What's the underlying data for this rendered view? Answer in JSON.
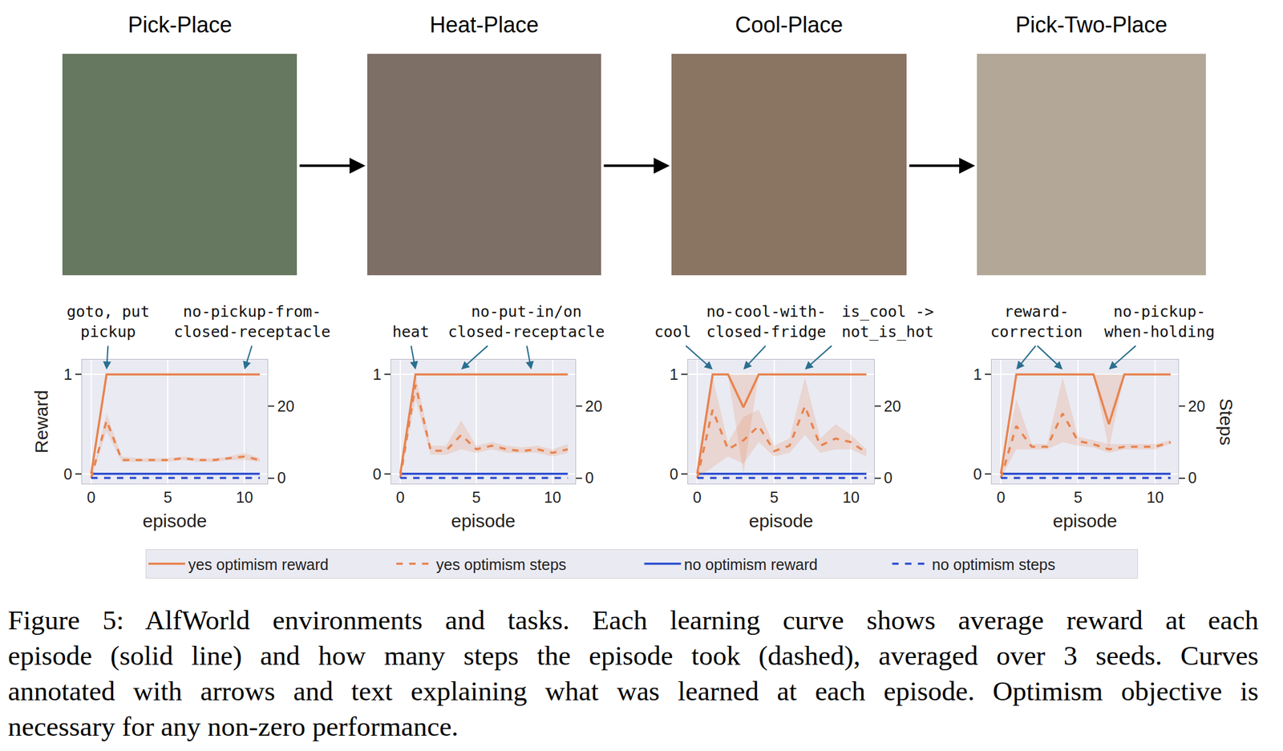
{
  "chart_data": [
    {
      "type": "line",
      "title": "Pick-Place",
      "x_label": "episode",
      "y_label": "Reward",
      "x": [
        0,
        1,
        2,
        3,
        4,
        5,
        6,
        7,
        8,
        9,
        10,
        11
      ],
      "xlim": [
        -0.6,
        11.5
      ],
      "xticks": [
        0,
        5,
        10
      ],
      "ylim": [
        -0.1,
        1.15
      ],
      "yticks": [
        0,
        1
      ],
      "y2lim": [
        -1.6,
        33
      ],
      "y2ticks": [
        0,
        20
      ],
      "grid": true,
      "legend": "bottom",
      "annotations": [
        {
          "text": "goto, put\npickup",
          "x": [
            1
          ]
        },
        {
          "text": "no-pickup-from-\nclosed-receptacle",
          "x": [
            10
          ]
        }
      ],
      "series": [
        {
          "name": "yes optimism reward",
          "color": "#e8834e",
          "line_style": "solid",
          "values": [
            0,
            1,
            1,
            1,
            1,
            1,
            1,
            1,
            1,
            1,
            1,
            1
          ]
        },
        {
          "name": "yes optimism steps",
          "color": "#e8834e",
          "line_style": "dashed",
          "axis": "y2",
          "values": [
            0,
            16,
            5,
            5,
            5,
            5,
            5.5,
            5,
            5,
            5.5,
            6,
            5
          ],
          "lower": [
            0,
            13,
            4.5,
            4.5,
            4.5,
            4.5,
            5,
            4.5,
            4.5,
            5,
            5,
            4.5
          ],
          "upper": [
            0,
            18,
            6,
            5.5,
            5.5,
            5.5,
            6,
            5.5,
            5.5,
            6,
            7,
            5.5
          ]
        },
        {
          "name": "no optimism reward",
          "color": "#2e4fd1",
          "line_style": "solid",
          "values": [
            0,
            0,
            0,
            0,
            0,
            0,
            0,
            0,
            0,
            0,
            0,
            0
          ]
        },
        {
          "name": "no optimism steps",
          "color": "#2e4fd1",
          "line_style": "dashed",
          "axis": "y2",
          "values": [
            0,
            0,
            0,
            0,
            0,
            0,
            0,
            0,
            0,
            0,
            0,
            0
          ]
        }
      ]
    },
    {
      "type": "line",
      "title": "Heat-Place",
      "x_label": "episode",
      "x": [
        0,
        1,
        2,
        3,
        4,
        5,
        6,
        7,
        8,
        9,
        10,
        11
      ],
      "xlim": [
        -0.6,
        11.5
      ],
      "xticks": [
        0,
        5,
        10
      ],
      "ylim": [
        -0.1,
        1.15
      ],
      "yticks": [
        0,
        1
      ],
      "y2lim": [
        -1.6,
        33
      ],
      "y2ticks": [
        0,
        20
      ],
      "grid": true,
      "annotations": [
        {
          "text": "heat",
          "x": [
            1
          ]
        },
        {
          "text": "no-put-in/on\nclosed-receptacle",
          "x": [
            4,
            8.6
          ]
        }
      ],
      "series": [
        {
          "name": "yes optimism reward",
          "color": "#e8834e",
          "line_style": "solid",
          "values": [
            0,
            1,
            1,
            1,
            1,
            1,
            1,
            1,
            1,
            1,
            1,
            1
          ]
        },
        {
          "name": "yes optimism steps",
          "color": "#e8834e",
          "line_style": "dashed",
          "axis": "y2",
          "values": [
            0,
            26,
            7.6,
            7.6,
            12,
            8,
            9,
            8,
            7.5,
            8,
            7,
            8
          ],
          "lower": [
            0,
            22,
            6.5,
            6.5,
            8,
            7,
            8,
            7,
            7,
            7,
            6,
            7
          ],
          "upper": [
            0,
            29,
            9,
            9,
            16,
            9,
            10,
            9,
            8.5,
            9,
            8,
            9.5
          ]
        },
        {
          "name": "no optimism reward",
          "color": "#2e4fd1",
          "line_style": "solid",
          "values": [
            0,
            0,
            0,
            0,
            0,
            0,
            0,
            0,
            0,
            0,
            0,
            0
          ]
        },
        {
          "name": "no optimism steps",
          "color": "#2e4fd1",
          "line_style": "dashed",
          "axis": "y2",
          "values": [
            0,
            0,
            0,
            0,
            0,
            0,
            0,
            0,
            0,
            0,
            0,
            0
          ]
        }
      ]
    },
    {
      "type": "line",
      "title": "Cool-Place",
      "x_label": "episode",
      "x": [
        0,
        1,
        2,
        3,
        4,
        5,
        6,
        7,
        8,
        9,
        10,
        11
      ],
      "xlim": [
        -0.6,
        11.5
      ],
      "xticks": [
        0,
        5,
        10
      ],
      "ylim": [
        -0.1,
        1.15
      ],
      "yticks": [
        0,
        1
      ],
      "y2lim": [
        -1.6,
        33
      ],
      "y2ticks": [
        0,
        20
      ],
      "grid": true,
      "annotations": [
        {
          "text": "cool",
          "x": [
            1
          ]
        },
        {
          "text": "no-cool-with-\nclosed-fridge",
          "x": [
            3
          ]
        },
        {
          "text": "is_cool ->\nnot_is_hot",
          "x": [
            7
          ]
        }
      ],
      "series": [
        {
          "name": "yes optimism reward",
          "color": "#e8834e",
          "line_style": "solid",
          "values": [
            0,
            1,
            1,
            0.67,
            1,
            1,
            1,
            1,
            1,
            1,
            1,
            1
          ],
          "lower": [
            0,
            1,
            1,
            0,
            1,
            1,
            1,
            1,
            1,
            1,
            1,
            1
          ],
          "upper": [
            0,
            1,
            1,
            1,
            1,
            1,
            1,
            1,
            1,
            1,
            1,
            1
          ]
        },
        {
          "name": "yes optimism steps",
          "color": "#e8834e",
          "line_style": "dashed",
          "axis": "y2",
          "values": [
            0,
            19,
            8,
            10.5,
            14.5,
            7.5,
            9,
            20,
            9,
            11,
            10,
            7
          ],
          "lower": [
            0,
            3,
            6,
            4,
            10,
            6,
            7,
            12,
            7,
            8,
            8,
            6
          ],
          "upper": [
            0,
            28,
            10,
            17,
            19,
            9,
            11,
            28,
            11,
            15,
            12,
            8
          ]
        },
        {
          "name": "no optimism reward",
          "color": "#2e4fd1",
          "line_style": "solid",
          "values": [
            0,
            0,
            0,
            0,
            0,
            0,
            0,
            0,
            0,
            0,
            0,
            0
          ]
        },
        {
          "name": "no optimism steps",
          "color": "#2e4fd1",
          "line_style": "dashed",
          "axis": "y2",
          "values": [
            0,
            0,
            0,
            0,
            0,
            0,
            0,
            0,
            0,
            0,
            0,
            0
          ]
        }
      ]
    },
    {
      "type": "line",
      "title": "Pick-Two-Place",
      "x_label": "episode",
      "y2_label": "Steps",
      "x": [
        0,
        1,
        2,
        3,
        4,
        5,
        6,
        7,
        8,
        9,
        10,
        11
      ],
      "xlim": [
        -0.6,
        11.5
      ],
      "xticks": [
        0,
        5,
        10
      ],
      "ylim": [
        -0.1,
        1.15
      ],
      "yticks": [
        0,
        1
      ],
      "y2lim": [
        -1.6,
        33
      ],
      "y2ticks": [
        0,
        20
      ],
      "grid": true,
      "annotations": [
        {
          "text": "reward-\ncorrection",
          "x": [
            1,
            4
          ]
        },
        {
          "text": "no-pickup-\nwhen-holding",
          "x": [
            7
          ]
        }
      ],
      "series": [
        {
          "name": "yes optimism reward",
          "color": "#e8834e",
          "line_style": "solid",
          "values": [
            0,
            1,
            1,
            1,
            1,
            1,
            1,
            0.5,
            1,
            1,
            1,
            1
          ],
          "lower": [
            0,
            1,
            1,
            1,
            1,
            1,
            1,
            0.25,
            1,
            1,
            1,
            1
          ],
          "upper": [
            0,
            1,
            1,
            1,
            1,
            1,
            1,
            1,
            1,
            1,
            1,
            1
          ]
        },
        {
          "name": "yes optimism steps",
          "color": "#e8834e",
          "line_style": "dashed",
          "axis": "y2",
          "values": [
            0,
            14.5,
            8.7,
            8.7,
            18,
            10.3,
            9.4,
            8,
            8.7,
            8.7,
            8.7,
            10
          ],
          "lower": [
            0,
            8,
            8,
            8,
            10,
            9,
            8.5,
            7,
            8,
            8,
            8,
            9.5
          ],
          "upper": [
            0,
            22,
            9.5,
            9.5,
            28,
            11.5,
            10.5,
            9.5,
            9.5,
            9.5,
            9.5,
            10.5
          ]
        },
        {
          "name": "no optimism reward",
          "color": "#2e4fd1",
          "line_style": "solid",
          "values": [
            0,
            0,
            0,
            0,
            0,
            0,
            0,
            0,
            0,
            0,
            0,
            0
          ]
        },
        {
          "name": "no optimism steps",
          "color": "#2e4fd1",
          "line_style": "dashed",
          "axis": "y2",
          "values": [
            0,
            0,
            0,
            0,
            0,
            0,
            0,
            0,
            0,
            0,
            0,
            0
          ]
        }
      ]
    }
  ],
  "caption": [
    "Figure 5: AlfWorld environments and tasks. Each learning curve shows average reward at each",
    "episode (solid line) and how many steps the episode took (dashed), averaged over 3 seeds. Curves",
    "annotated with arrows and text explaining what was learned at each episode. Optimism objective is",
    "necessary for any non-zero performance."
  ]
}
